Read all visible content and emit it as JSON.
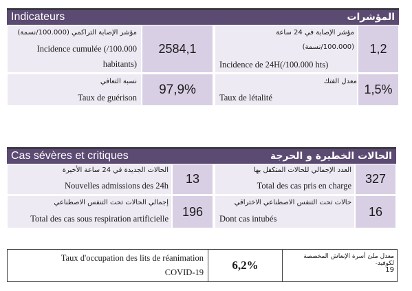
{
  "indicateurs": {
    "title_fr": "Indicateurs",
    "title_ar": "المؤشرات",
    "cumul": {
      "label_ar": "مؤشر الإصابة التراكمي (100.000/نسمة)",
      "label_fr_1": "Incidence cumulée (/100.000",
      "label_fr_2": "habitants)",
      "value": "2584,1"
    },
    "incidence24": {
      "label_ar_1": "مؤشر الإصابة في 24 ساعة",
      "label_ar_2": "(100.000/نسمة)",
      "label_fr": "Incidence de 24H(/100.000 hts)",
      "value": "1,2"
    },
    "guerison": {
      "label_ar": "نسبة التعافي",
      "label_fr": "Taux de guérison",
      "value": "97,9%"
    },
    "letalite": {
      "label_ar": "معدل الفتك",
      "label_fr": "Taux de létalité",
      "value": "1,5%"
    }
  },
  "cas_severes": {
    "title_fr": "Cas sévères et critiques",
    "title_ar": "الحالات الخطيرة و الحرجة",
    "nouvelles": {
      "label_ar": "الحالات الجديدة في 24 ساعة الأخيرة",
      "label_fr": "Nouvelles admissions des 24h",
      "value": "13"
    },
    "total_charge": {
      "label_ar": "العدد الإجمالي للحالات المتكفل بها",
      "label_fr": "Total des cas pris en charge",
      "value": "327"
    },
    "respiration": {
      "label_ar": "إجمالي الحالات تحت التنفس الاصطناعي",
      "label_fr": "Total des cas sous respiration artificielle",
      "value": "196"
    },
    "intubes": {
      "label_ar": "حالات تحت التنفس الاصطناعي الاختراقي",
      "label_fr": "Dont cas intubés",
      "value": "16"
    }
  },
  "occupation": {
    "label_fr_1": "Taux d'occupation des lits de réanimation",
    "label_fr_2": "COVID-19",
    "value": "6,2%",
    "label_ar_1": "معدل ملئ أسرة الإنعاش المخصصة لكوفيد-",
    "label_ar_2": "19"
  }
}
